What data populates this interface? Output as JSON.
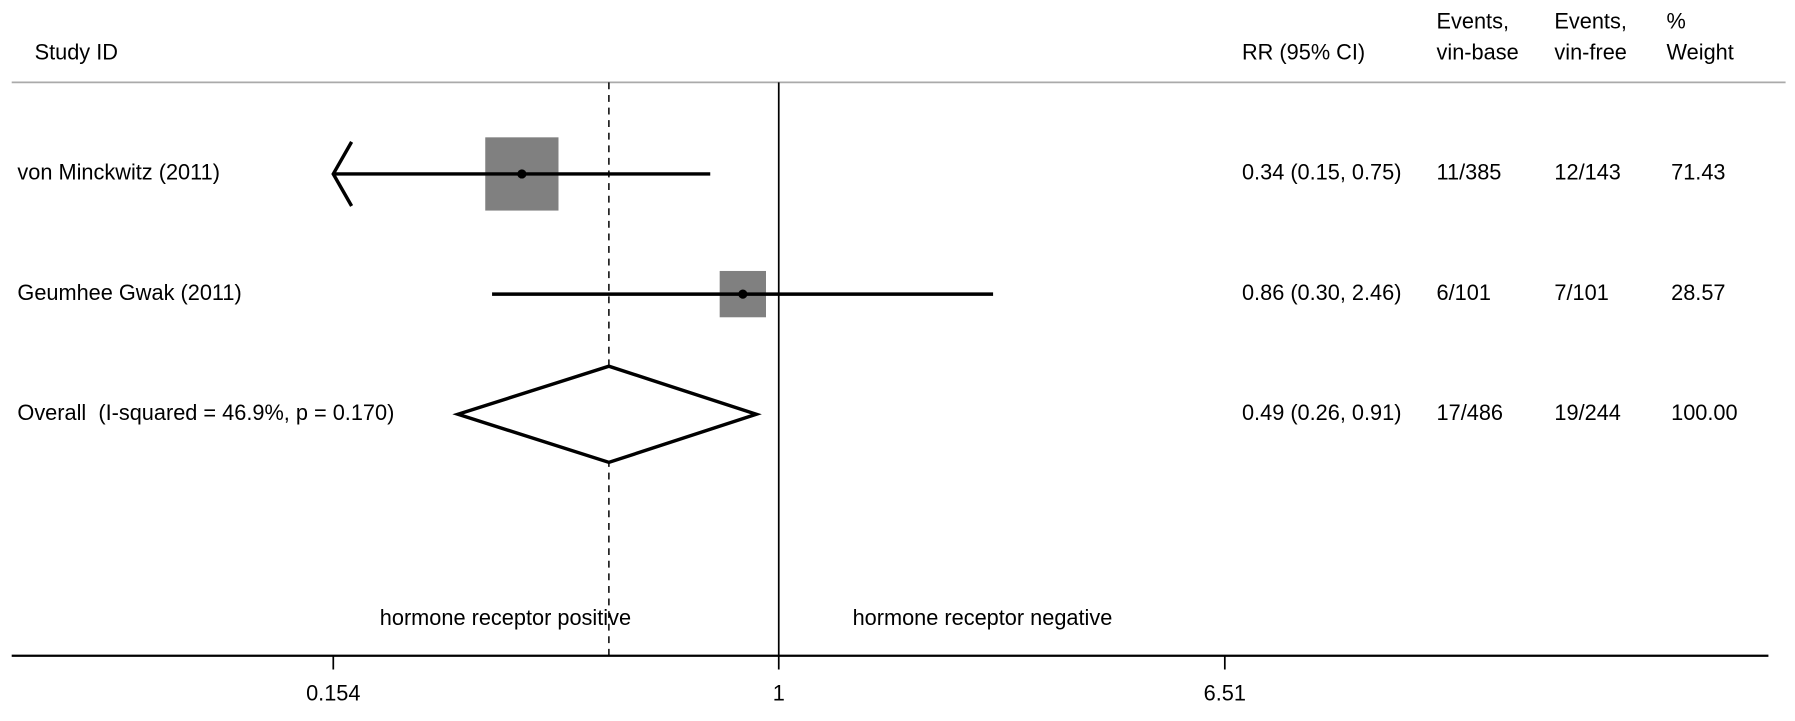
{
  "chart_data": {
    "type": "forest",
    "log_x": true,
    "xlim": [
      0.154,
      6.51
    ],
    "xticks": [
      0.154,
      1,
      6.51
    ],
    "null_value": 1,
    "box_color": "#808080",
    "line_color": "#000000",
    "headers": {
      "study": "Study ID",
      "estimate": "RR (95% CI)",
      "events_base": [
        "Events,",
        "vin-base"
      ],
      "events_free": [
        "Events,",
        "vin-free"
      ],
      "weight": [
        "%",
        "Weight"
      ]
    },
    "studies": [
      {
        "name": "von Minckwitz (2011)",
        "rr": 0.34,
        "lower": 0.15,
        "upper": 0.75,
        "label": "0.34 (0.15, 0.75)",
        "events_base": "11/385",
        "events_free": "12/143",
        "weight": 71.43,
        "weight_label": "71.43"
      },
      {
        "name": "Geumhee Gwak (2011)",
        "rr": 0.86,
        "lower": 0.3,
        "upper": 2.46,
        "label": "0.86 (0.30, 2.46)",
        "events_base": "6/101",
        "events_free": "7/101",
        "weight": 28.57,
        "weight_label": "28.57"
      }
    ],
    "overall": {
      "name": "Overall  (I-squared = 46.9%, p = 0.170)",
      "rr": 0.49,
      "lower": 0.26,
      "upper": 0.91,
      "label": "0.49 (0.26, 0.91)",
      "events_base": "17/486",
      "events_free": "19/244",
      "weight": 100,
      "weight_label": "100.00"
    },
    "annotations": {
      "left": "hormone receptor positive",
      "right": "hormone receptor negative"
    }
  }
}
